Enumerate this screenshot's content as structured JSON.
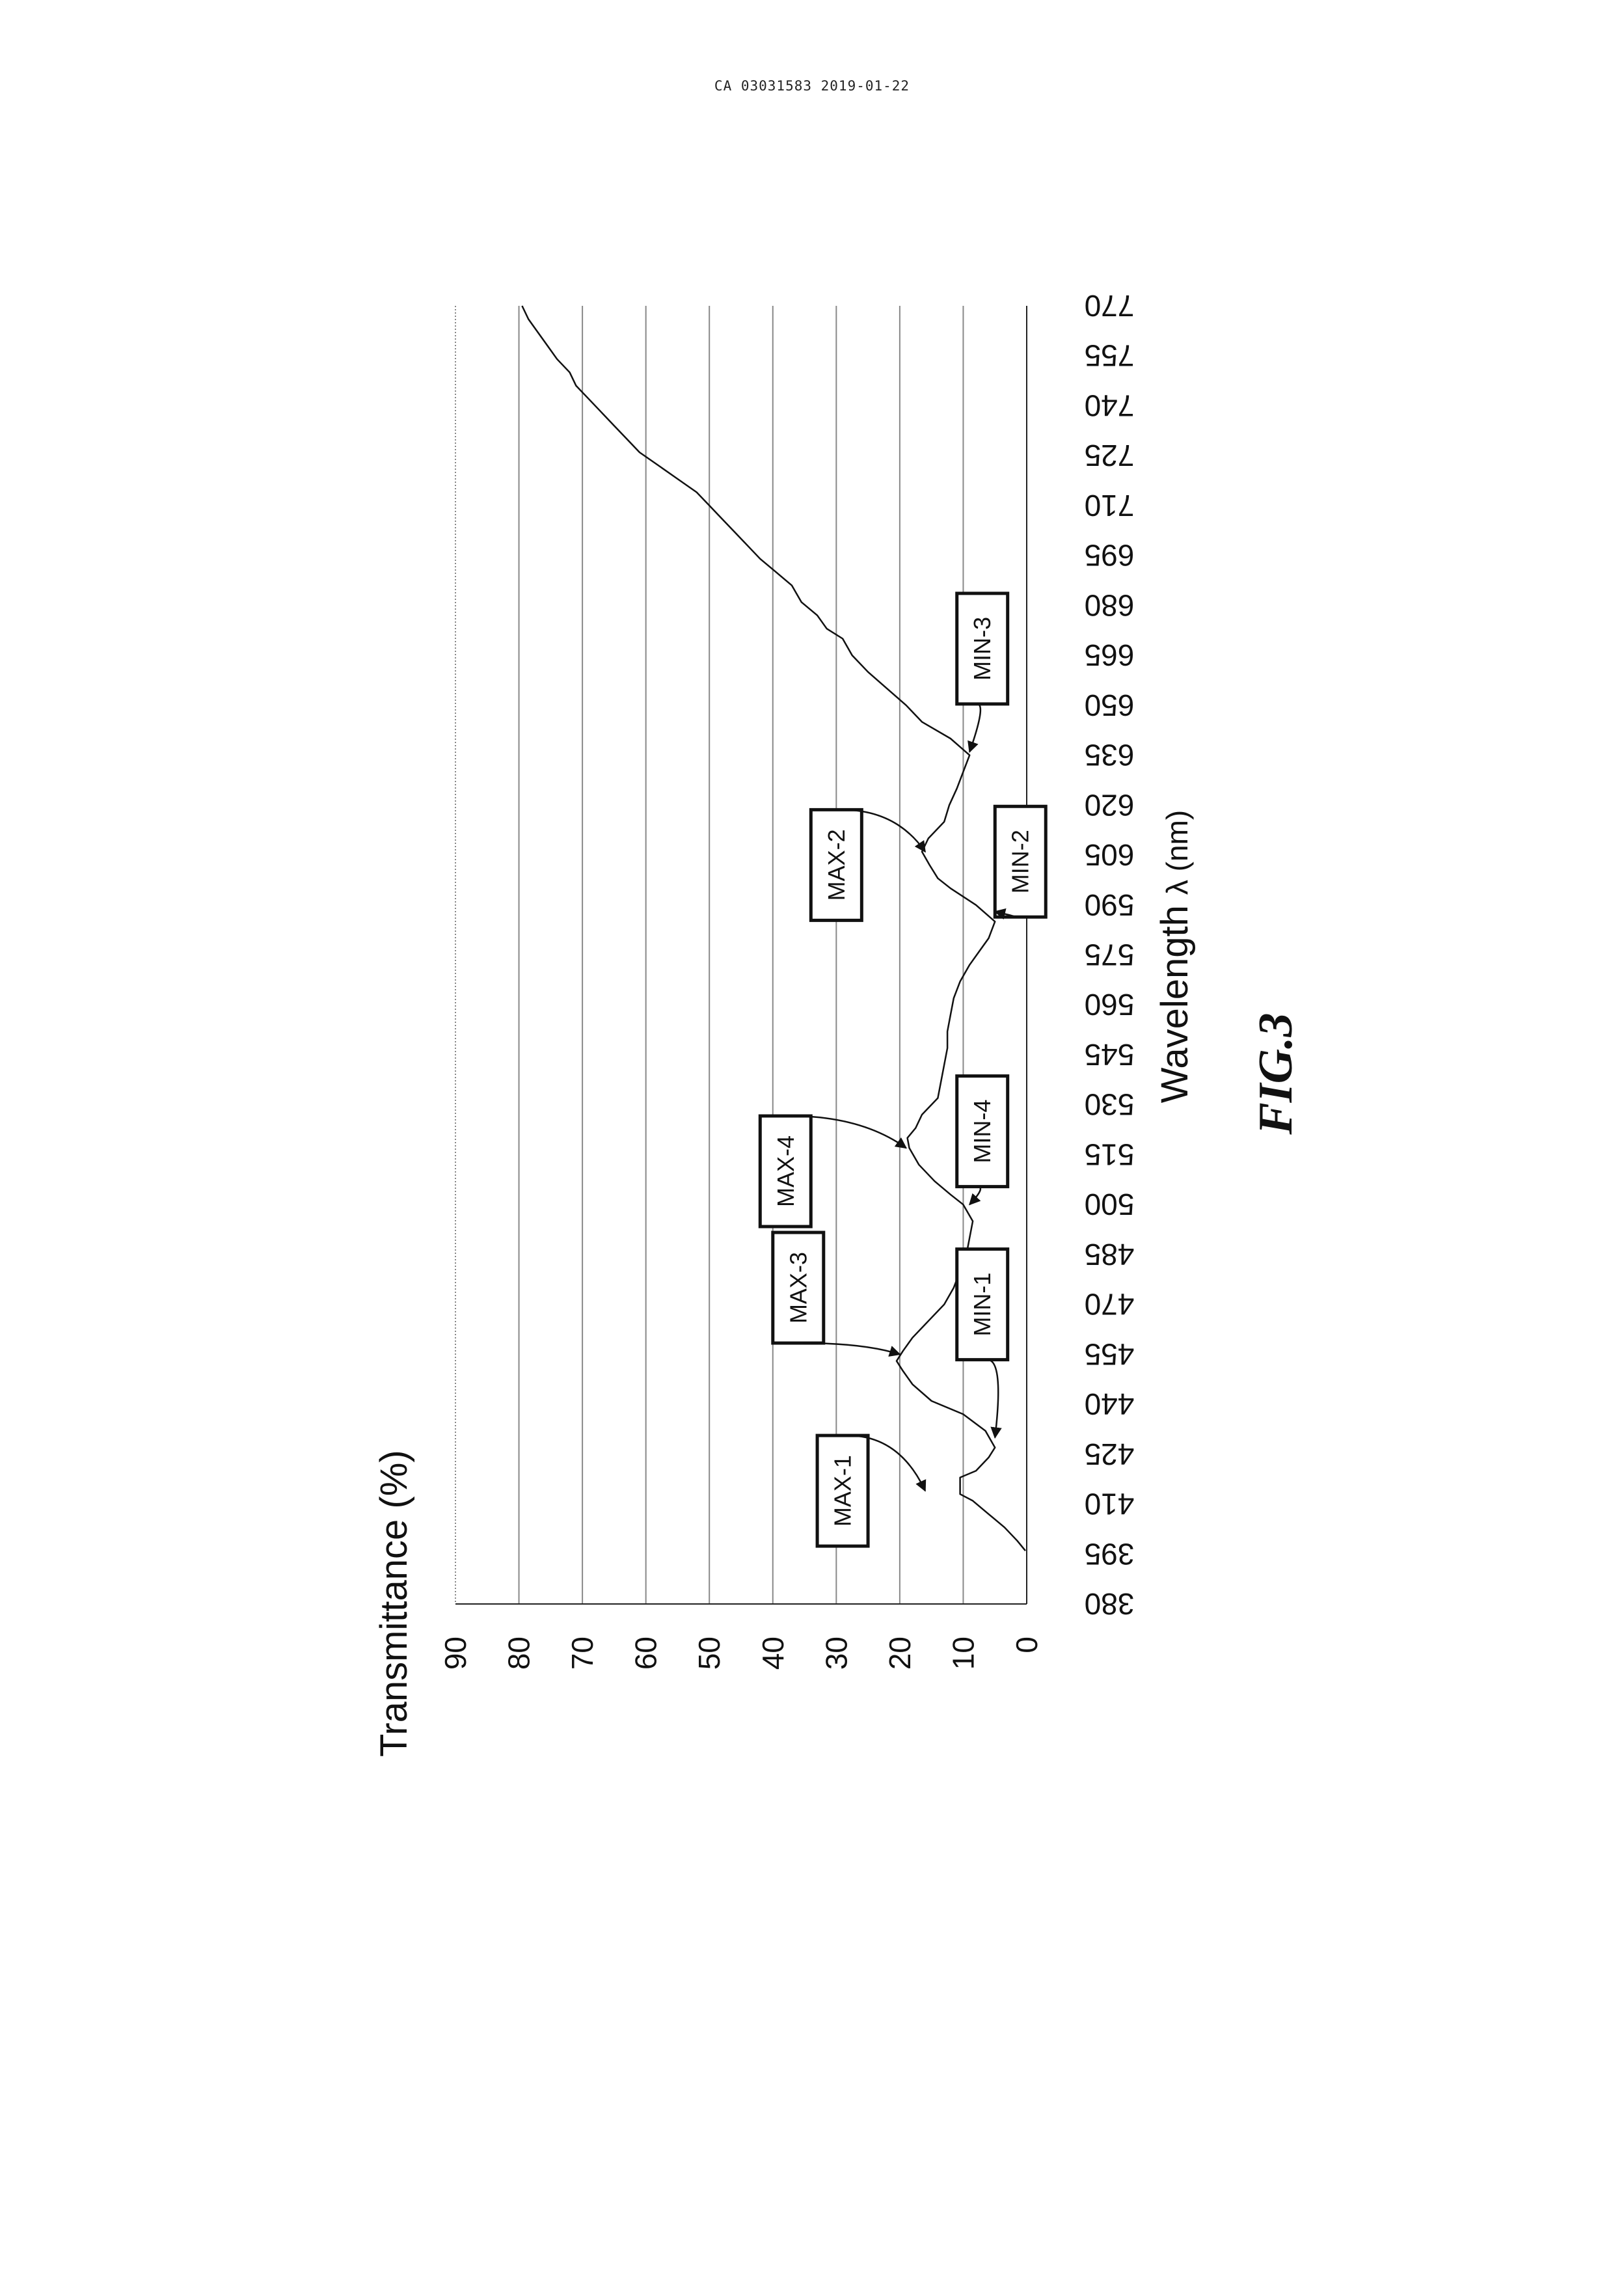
{
  "header": {
    "text": "CA 03031583 2019-01-22"
  },
  "figure_label": "FIG.3",
  "chart_data": {
    "type": "line",
    "title": "",
    "ylabel": "Transmittance (%)",
    "xlabel_main": "Wavelength",
    "xlabel_unit": "λ (nm)",
    "orientation": "rotated-90-clockwise",
    "grid": true,
    "xlim": [
      380,
      770
    ],
    "ylim": [
      0,
      90
    ],
    "x_ticks": [
      380,
      395,
      410,
      425,
      440,
      455,
      470,
      485,
      500,
      515,
      530,
      545,
      560,
      575,
      590,
      605,
      620,
      635,
      650,
      665,
      680,
      695,
      710,
      725,
      740,
      755,
      770
    ],
    "y_ticks": [
      0,
      10,
      20,
      30,
      40,
      50,
      60,
      70,
      80,
      90
    ],
    "series": [
      {
        "x": [
          396,
          399,
          403,
          407,
          411,
          413,
          418,
          420,
          424,
          427,
          432,
          437,
          441,
          446,
          450,
          453,
          456,
          460,
          465,
          470,
          475,
          480,
          485,
          490,
          495,
          500,
          503,
          507,
          512,
          517,
          520,
          523,
          527,
          532,
          537,
          542,
          547,
          552,
          557,
          562,
          567,
          572,
          576,
          580,
          585,
          590,
          595,
          598,
          602,
          606,
          610,
          615,
          620,
          625,
          630,
          635,
          640,
          645,
          650,
          655,
          660,
          665,
          670,
          673,
          677,
          681,
          686,
          690,
          694,
          698,
          702,
          706,
          710,
          714,
          718,
          722,
          726,
          730,
          734,
          738,
          742,
          746,
          750,
          754,
          758,
          762,
          766,
          770
        ],
        "y": [
          0.2,
          1.5,
          3.5,
          6,
          8.5,
          10.5,
          10.5,
          8,
          6,
          5,
          6.5,
          10,
          15,
          18,
          19.5,
          20.5,
          19.5,
          18,
          15.5,
          13,
          11.5,
          10.5,
          9.5,
          9,
          8.5,
          10,
          12,
          14.5,
          17,
          18.5,
          18.8,
          17.5,
          16.5,
          14,
          13.5,
          13,
          12.5,
          12.5,
          12,
          11.5,
          10.5,
          9,
          7.5,
          6,
          5,
          8,
          12,
          14,
          15.3,
          16.5,
          15.5,
          13,
          12.2,
          11,
          10,
          9,
          12,
          16.5,
          19,
          22,
          25,
          27.5,
          29,
          31.5,
          33,
          35.5,
          37,
          39.5,
          42,
          44,
          46,
          48,
          50,
          52,
          55,
          58,
          61,
          63,
          65,
          67,
          69,
          71,
          72,
          74,
          75.5,
          77,
          78.5,
          79.5
        ]
      }
    ],
    "annotations": [
      {
        "label": "MAX-1",
        "x": 414,
        "y": 16,
        "box_x": 414,
        "box_y": 29
      },
      {
        "label": "MIN-1",
        "x": 430,
        "y": 5,
        "box_x": 470,
        "box_y": 7
      },
      {
        "label": "MAX-3",
        "x": 455,
        "y": 20,
        "box_x": 475,
        "box_y": 36
      },
      {
        "label": "MIN-4",
        "x": 500,
        "y": 9,
        "box_x": 522,
        "box_y": 7
      },
      {
        "label": "MAX-4",
        "x": 517,
        "y": 19,
        "box_x": 510,
        "box_y": 38
      },
      {
        "label": "MIN-2",
        "x": 588,
        "y": 5,
        "box_x": 603,
        "box_y": 1
      },
      {
        "label": "MAX-2",
        "x": 606,
        "y": 16,
        "box_x": 602,
        "box_y": 30
      },
      {
        "label": "MIN-3",
        "x": 636,
        "y": 9,
        "box_x": 667,
        "box_y": 7
      }
    ]
  }
}
